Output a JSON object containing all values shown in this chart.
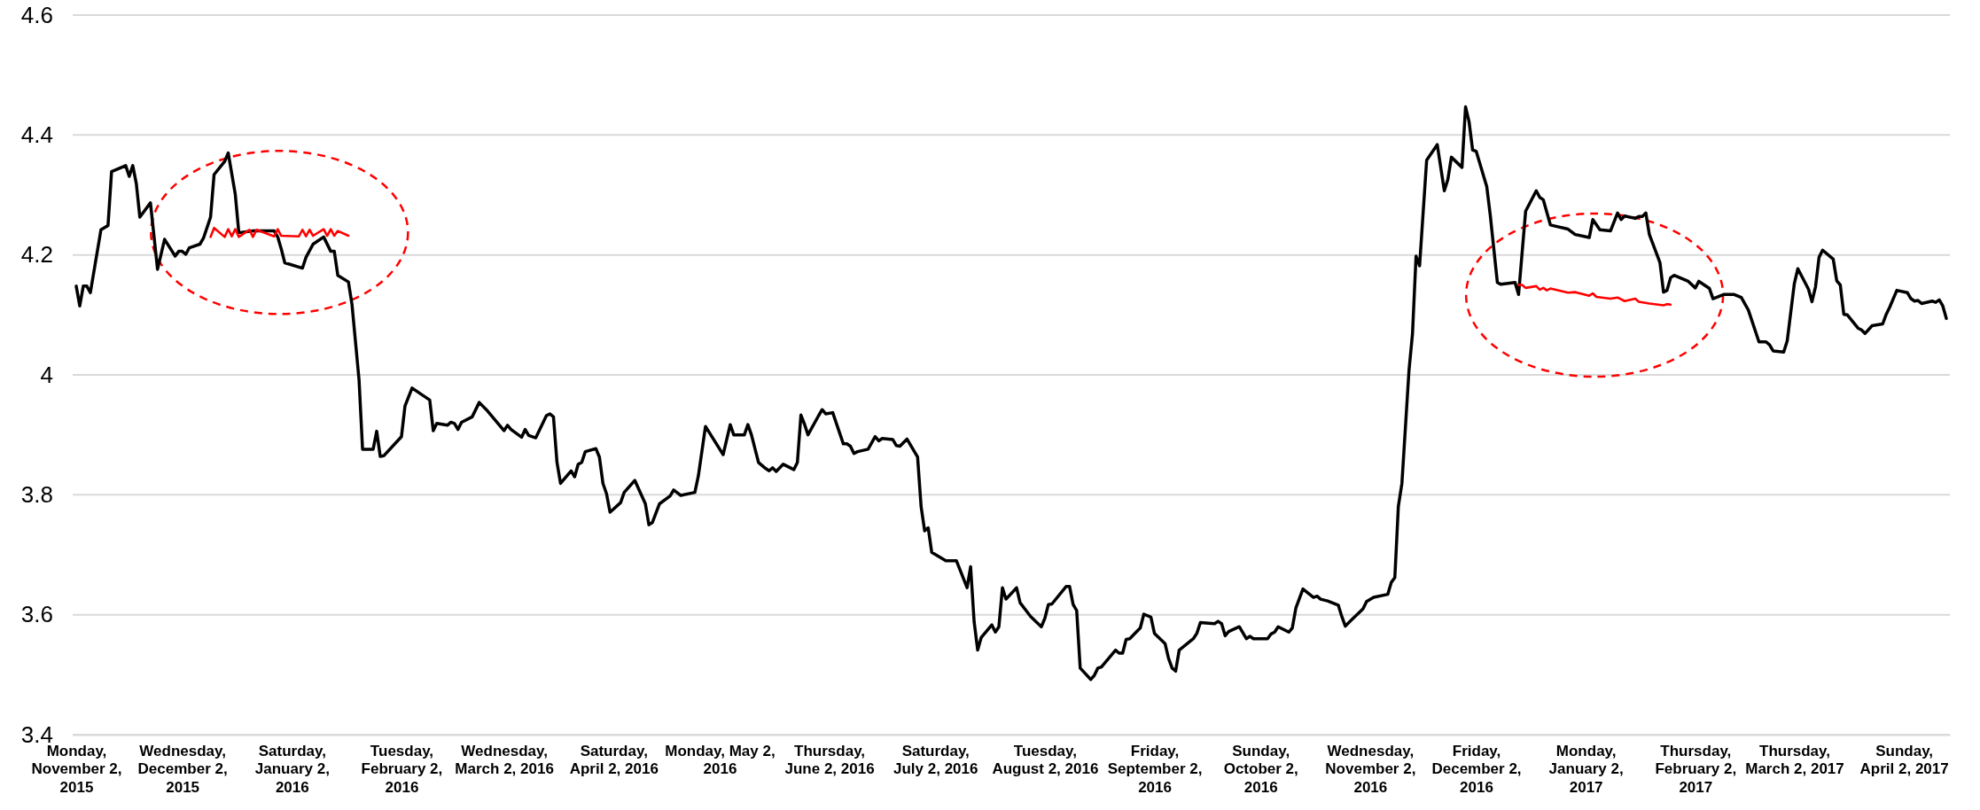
{
  "chart_data": {
    "type": "line",
    "xlim": [
      "2015-11-01",
      "2017-04-15"
    ],
    "ylim": [
      3.4,
      4.6
    ],
    "yticks": [
      3.4,
      3.6,
      3.8,
      4,
      4.2,
      4.4,
      4.6
    ],
    "grid": "y",
    "marker": "none",
    "line_style": "solid",
    "xticks": [
      {
        "value": "2015-11-02",
        "label": "Monday, November 2, 2015"
      },
      {
        "value": "2015-12-02",
        "label": "Wednesday, December 2, 2015"
      },
      {
        "value": "2016-01-02",
        "label": "Saturday, January 2, 2016"
      },
      {
        "value": "2016-02-02",
        "label": "Tuesday, February 2, 2016"
      },
      {
        "value": "2016-03-02",
        "label": "Wednesday, March 2, 2016"
      },
      {
        "value": "2016-04-02",
        "label": "Saturday, April 2, 2016"
      },
      {
        "value": "2016-05-02",
        "label": "Monday, May 2, 2016"
      },
      {
        "value": "2016-06-02",
        "label": "Thursday, June 2, 2016"
      },
      {
        "value": "2016-07-02",
        "label": "Saturday, July 2, 2016"
      },
      {
        "value": "2016-08-02",
        "label": "Tuesday, August 2, 2016"
      },
      {
        "value": "2016-09-02",
        "label": "Friday, September 2, 2016"
      },
      {
        "value": "2016-10-02",
        "label": "Sunday, October 2, 2016"
      },
      {
        "value": "2016-11-02",
        "label": "Wednesday, November 2, 2016"
      },
      {
        "value": "2016-12-02",
        "label": "Friday, December 2, 2016"
      },
      {
        "value": "2017-01-02",
        "label": "Monday, January 2, 2017"
      },
      {
        "value": "2017-02-02",
        "label": "Thursday, February 2, 2017"
      },
      {
        "value": "2017-03-02",
        "label": "Thursday, March 2, 2017"
      },
      {
        "value": "2017-04-02",
        "label": "Sunday, April 2, 2017"
      }
    ],
    "series": [
      {
        "color": "#000000",
        "x": [
          "2015-11-02",
          "2015-11-03",
          "2015-11-04",
          "2015-11-05",
          "2015-11-06",
          "2015-11-09",
          "2015-11-11",
          "2015-11-12",
          "2015-11-16",
          "2015-11-17",
          "2015-11-18",
          "2015-11-19",
          "2015-11-20",
          "2015-11-23",
          "2015-11-25",
          "2015-11-27",
          "2015-11-30",
          "2015-12-01",
          "2015-12-02",
          "2015-12-03",
          "2015-12-04",
          "2015-12-07",
          "2015-12-08",
          "2015-12-10",
          "2015-12-11",
          "2015-12-14",
          "2015-12-15",
          "2015-12-17",
          "2015-12-18",
          "2015-12-22",
          "2015-12-28",
          "2015-12-29",
          "2015-12-30",
          "2015-12-31",
          "2016-01-05",
          "2016-01-06",
          "2016-01-08",
          "2016-01-11",
          "2016-01-13",
          "2016-01-14",
          "2016-01-15",
          "2016-01-18",
          "2016-01-19",
          "2016-01-21",
          "2016-01-22",
          "2016-01-25",
          "2016-01-26",
          "2016-01-27",
          "2016-01-28",
          "2016-02-02",
          "2016-02-03",
          "2016-02-05",
          "2016-02-10",
          "2016-02-11",
          "2016-02-12",
          "2016-02-15",
          "2016-02-16",
          "2016-02-17",
          "2016-02-18",
          "2016-02-19",
          "2016-02-22",
          "2016-02-24",
          "2016-02-26",
          "2016-02-29",
          "2016-03-02",
          "2016-03-03",
          "2016-03-04",
          "2016-03-07",
          "2016-03-08",
          "2016-03-09",
          "2016-03-11",
          "2016-03-14",
          "2016-03-15",
          "2016-03-16",
          "2016-03-17",
          "2016-03-18",
          "2016-03-21",
          "2016-03-22",
          "2016-03-23",
          "2016-03-24",
          "2016-03-25",
          "2016-03-28",
          "2016-03-29",
          "2016-03-30",
          "2016-03-31",
          "2016-04-01",
          "2016-04-04",
          "2016-04-05",
          "2016-04-08",
          "2016-04-11",
          "2016-04-12",
          "2016-04-13",
          "2016-04-15",
          "2016-04-18",
          "2016-04-19",
          "2016-04-21",
          "2016-04-25",
          "2016-04-26",
          "2016-04-28",
          "2016-05-03",
          "2016-05-05",
          "2016-05-06",
          "2016-05-09",
          "2016-05-10",
          "2016-05-11",
          "2016-05-13",
          "2016-05-15",
          "2016-05-16",
          "2016-05-17",
          "2016-05-18",
          "2016-05-20",
          "2016-05-23",
          "2016-05-24",
          "2016-05-25",
          "2016-05-26",
          "2016-05-27",
          "2016-05-30",
          "2016-05-31",
          "2016-06-01",
          "2016-06-03",
          "2016-06-06",
          "2016-06-07",
          "2016-06-08",
          "2016-06-09",
          "2016-06-10",
          "2016-06-13",
          "2016-06-15",
          "2016-06-16",
          "2016-06-17",
          "2016-06-20",
          "2016-06-21",
          "2016-06-22",
          "2016-06-24",
          "2016-06-27",
          "2016-06-28",
          "2016-06-29",
          "2016-06-30",
          "2016-07-01",
          "2016-07-05",
          "2016-07-08",
          "2016-07-11",
          "2016-07-12",
          "2016-07-13",
          "2016-07-14",
          "2016-07-15",
          "2016-07-18",
          "2016-07-19",
          "2016-07-20",
          "2016-07-21",
          "2016-07-22",
          "2016-07-25",
          "2016-07-26",
          "2016-07-29",
          "2016-08-01",
          "2016-08-02",
          "2016-08-03",
          "2016-08-04",
          "2016-08-08",
          "2016-08-09",
          "2016-08-10",
          "2016-08-11",
          "2016-08-12",
          "2016-08-15",
          "2016-08-16",
          "2016-08-17",
          "2016-08-18",
          "2016-08-22",
          "2016-08-23",
          "2016-08-24",
          "2016-08-25",
          "2016-08-26",
          "2016-08-29",
          "2016-08-30",
          "2016-09-01",
          "2016-09-02",
          "2016-09-05",
          "2016-09-06",
          "2016-09-07",
          "2016-09-08",
          "2016-09-09",
          "2016-09-13",
          "2016-09-14",
          "2016-09-15",
          "2016-09-19",
          "2016-09-20",
          "2016-09-21",
          "2016-09-22",
          "2016-09-23",
          "2016-09-26",
          "2016-09-28",
          "2016-09-29",
          "2016-09-30",
          "2016-10-04",
          "2016-10-05",
          "2016-10-06",
          "2016-10-07",
          "2016-10-10",
          "2016-10-11",
          "2016-10-12",
          "2016-10-14",
          "2016-10-17",
          "2016-10-18",
          "2016-10-19",
          "2016-10-21",
          "2016-10-24",
          "2016-10-25",
          "2016-10-26",
          "2016-10-28",
          "2016-10-31",
          "2016-11-01",
          "2016-11-03",
          "2016-11-07",
          "2016-11-08",
          "2016-11-09",
          "2016-11-10",
          "2016-11-11",
          "2016-11-13",
          "2016-11-14",
          "2016-11-15",
          "2016-11-16",
          "2016-11-18",
          "2016-11-21",
          "2016-11-23",
          "2016-11-24",
          "2016-11-25",
          "2016-11-28",
          "2016-11-29",
          "2016-11-30",
          "2016-12-01",
          "2016-12-02",
          "2016-12-05",
          "2016-12-06",
          "2016-12-08",
          "2016-12-09",
          "2016-12-13",
          "2016-12-14",
          "2016-12-16",
          "2016-12-19",
          "2016-12-20",
          "2016-12-21",
          "2016-12-23",
          "2016-12-28",
          "2016-12-30",
          "2017-01-03",
          "2017-01-04",
          "2017-01-06",
          "2017-01-09",
          "2017-01-11",
          "2017-01-12",
          "2017-01-13",
          "2017-01-16",
          "2017-01-17",
          "2017-01-18",
          "2017-01-19",
          "2017-01-20",
          "2017-01-23",
          "2017-01-24",
          "2017-01-25",
          "2017-01-26",
          "2017-01-27",
          "2017-01-31",
          "2017-02-02",
          "2017-02-03",
          "2017-02-06",
          "2017-02-07",
          "2017-02-10",
          "2017-02-13",
          "2017-02-15",
          "2017-02-17",
          "2017-02-20",
          "2017-02-22",
          "2017-02-23",
          "2017-02-24",
          "2017-02-27",
          "2017-02-28",
          "2017-03-02",
          "2017-03-03",
          "2017-03-06",
          "2017-03-07",
          "2017-03-08",
          "2017-03-09",
          "2017-03-10",
          "2017-03-13",
          "2017-03-14",
          "2017-03-15",
          "2017-03-16",
          "2017-03-17",
          "2017-03-20",
          "2017-03-21",
          "2017-03-22",
          "2017-03-24",
          "2017-03-27",
          "2017-03-28",
          "2017-03-29",
          "2017-03-31",
          "2017-04-03",
          "2017-04-04",
          "2017-04-05",
          "2017-04-06",
          "2017-04-07",
          "2017-04-10",
          "2017-04-11",
          "2017-04-12",
          "2017-04-13",
          "2017-04-14"
        ],
        "values": [
          4.148,
          4.115,
          4.148,
          4.148,
          4.137,
          4.242,
          4.249,
          4.339,
          4.349,
          4.331,
          4.349,
          4.319,
          4.263,
          4.287,
          4.176,
          4.226,
          4.198,
          4.206,
          4.206,
          4.201,
          4.212,
          4.218,
          4.228,
          4.263,
          4.334,
          4.356,
          4.37,
          4.301,
          4.237,
          4.24,
          4.24,
          4.23,
          4.21,
          4.187,
          4.178,
          4.196,
          4.218,
          4.23,
          4.206,
          4.206,
          4.166,
          4.155,
          4.118,
          3.992,
          3.876,
          3.876,
          3.906,
          3.864,
          3.865,
          3.897,
          3.948,
          3.978,
          3.958,
          3.907,
          3.919,
          3.916,
          3.921,
          3.919,
          3.909,
          3.921,
          3.93,
          3.954,
          3.942,
          3.921,
          3.907,
          3.916,
          3.909,
          3.896,
          3.909,
          3.899,
          3.895,
          3.932,
          3.935,
          3.93,
          3.854,
          3.819,
          3.84,
          3.83,
          3.851,
          3.854,
          3.872,
          3.877,
          3.863,
          3.819,
          3.802,
          3.771,
          3.787,
          3.804,
          3.824,
          3.785,
          3.75,
          3.754,
          3.785,
          3.798,
          3.808,
          3.799,
          3.804,
          3.832,
          3.914,
          3.867,
          3.917,
          3.9,
          3.9,
          3.917,
          3.9,
          3.854,
          3.844,
          3.84,
          3.845,
          3.839,
          3.851,
          3.842,
          3.854,
          3.933,
          3.918,
          3.9,
          3.932,
          3.942,
          3.935,
          3.937,
          3.885,
          3.885,
          3.881,
          3.869,
          3.872,
          3.876,
          3.897,
          3.89,
          3.894,
          3.892,
          3.882,
          3.881,
          3.893,
          3.863,
          3.78,
          3.74,
          3.745,
          3.704,
          3.69,
          3.69,
          3.645,
          3.68,
          3.588,
          3.541,
          3.562,
          3.583,
          3.571,
          3.58,
          3.645,
          3.626,
          3.645,
          3.62,
          3.597,
          3.58,
          3.594,
          3.617,
          3.618,
          3.647,
          3.647,
          3.617,
          3.607,
          3.511,
          3.492,
          3.499,
          3.511,
          3.513,
          3.541,
          3.536,
          3.536,
          3.559,
          3.56,
          3.578,
          3.601,
          3.596,
          3.569,
          3.552,
          3.527,
          3.511,
          3.506,
          3.541,
          3.56,
          3.569,
          3.587,
          3.585,
          3.589,
          3.585,
          3.565,
          3.572,
          3.58,
          3.56,
          3.564,
          3.56,
          3.56,
          3.568,
          3.571,
          3.58,
          3.571,
          3.578,
          3.611,
          3.643,
          3.629,
          3.631,
          3.626,
          3.623,
          3.616,
          3.597,
          3.581,
          3.593,
          3.61,
          3.622,
          3.629,
          3.634,
          3.654,
          3.662,
          3.781,
          3.819,
          4.007,
          4.069,
          4.198,
          4.182,
          4.358,
          4.384,
          4.307,
          4.326,
          4.363,
          4.346,
          4.447,
          4.422,
          4.375,
          4.373,
          4.314,
          4.266,
          4.154,
          4.151,
          4.154,
          4.134,
          4.273,
          4.307,
          4.296,
          4.292,
          4.25,
          4.243,
          4.234,
          4.229,
          4.259,
          4.242,
          4.24,
          4.27,
          4.259,
          4.265,
          4.261,
          4.264,
          4.264,
          4.27,
          4.234,
          4.187,
          4.138,
          4.141,
          4.162,
          4.166,
          4.156,
          4.145,
          4.156,
          4.144,
          4.127,
          4.134,
          4.134,
          4.129,
          4.108,
          4.055,
          4.055,
          4.05,
          4.04,
          4.038,
          4.057,
          4.152,
          4.177,
          4.143,
          4.122,
          4.147,
          4.196,
          4.208,
          4.193,
          4.157,
          4.15,
          4.101,
          4.1,
          4.078,
          4.075,
          4.069,
          4.082,
          4.085,
          4.101,
          4.113,
          4.141,
          4.137,
          4.127,
          4.123,
          4.124,
          4.119,
          4.123,
          4.121,
          4.125,
          4.115,
          4.094
        ]
      },
      {
        "color": "#ff0000",
        "x": [
          "2015-12-10",
          "2015-12-11",
          "2015-12-14",
          "2015-12-15",
          "2015-12-16",
          "2015-12-17",
          "2015-12-18",
          "2015-12-21",
          "2015-12-22",
          "2015-12-23",
          "2015-12-28",
          "2015-12-29",
          "2015-12-30",
          "2016-01-04",
          "2016-01-05",
          "2016-01-06",
          "2016-01-07",
          "2016-01-08",
          "2016-01-11",
          "2016-01-12",
          "2016-01-13",
          "2016-01-14",
          "2016-01-15",
          "2016-01-18"
        ],
        "values": [
          4.23,
          4.245,
          4.23,
          4.243,
          4.231,
          4.243,
          4.23,
          4.242,
          4.23,
          4.242,
          4.231,
          4.243,
          4.232,
          4.231,
          4.242,
          4.231,
          4.242,
          4.232,
          4.243,
          4.232,
          4.243,
          4.232,
          4.24,
          4.232
        ]
      },
      {
        "color": "#ff0000",
        "x": [
          "2016-12-14",
          "2016-12-15",
          "2016-12-16",
          "2016-12-19",
          "2016-12-20",
          "2016-12-21",
          "2016-12-22",
          "2016-12-23",
          "2016-12-28",
          "2016-12-30",
          "2017-01-03",
          "2017-01-04",
          "2017-01-05",
          "2017-01-09",
          "2017-01-11",
          "2017-01-13",
          "2017-01-16",
          "2017-01-17",
          "2017-01-20",
          "2017-01-24",
          "2017-01-25",
          "2017-01-26"
        ],
        "values": [
          4.15,
          4.15,
          4.145,
          4.148,
          4.142,
          4.145,
          4.141,
          4.144,
          4.137,
          4.138,
          4.132,
          4.136,
          4.13,
          4.127,
          4.129,
          4.123,
          4.127,
          4.122,
          4.119,
          4.116,
          4.118,
          4.117
        ]
      }
    ]
  }
}
